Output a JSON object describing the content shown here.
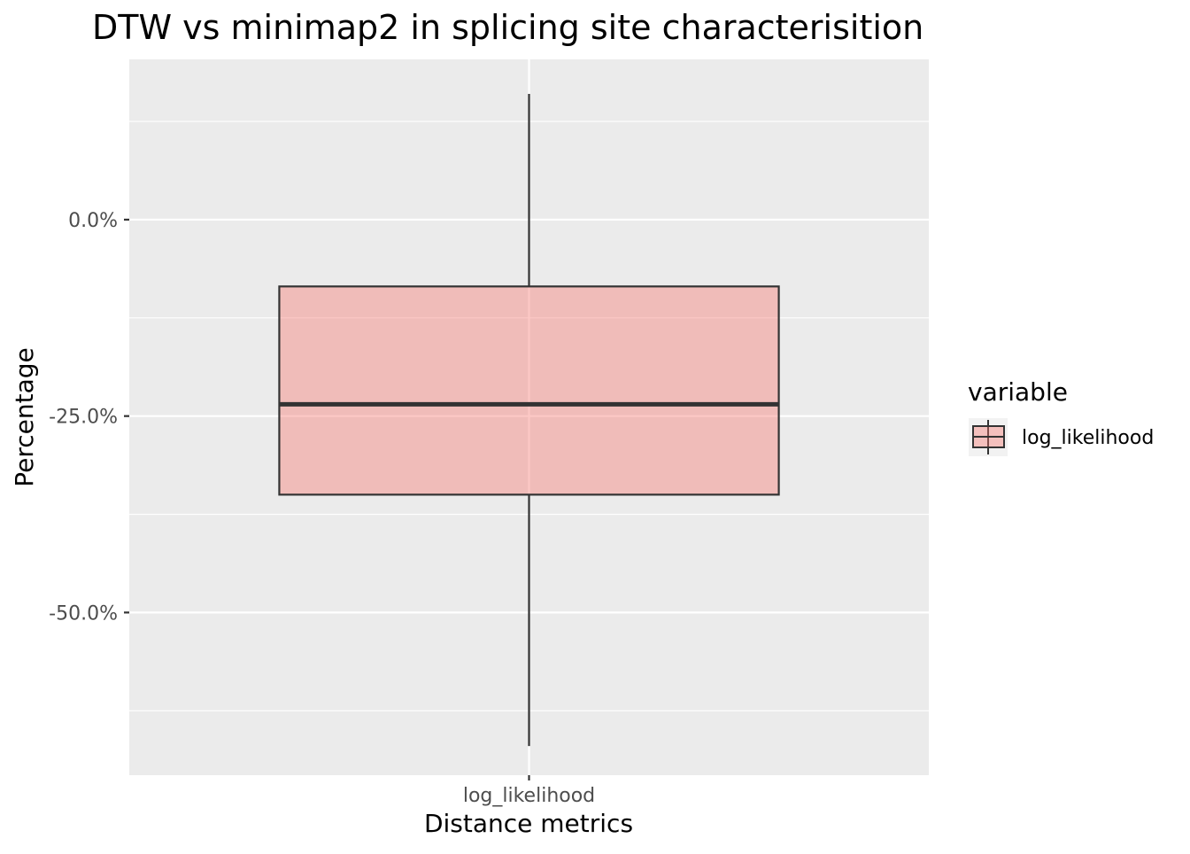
{
  "chart_data": {
    "type": "box",
    "title": "DTW vs minimap2 in splicing site characterisition",
    "xlabel": "Distance metrics",
    "ylabel": "Percentage",
    "categories": [
      "log_likelihood"
    ],
    "y_ticks": [
      0,
      -25,
      -50
    ],
    "y_tick_labels": [
      "0.0%",
      "-25.0%",
      "-50.0%"
    ],
    "y_unit": "%",
    "ylim": [
      -70.7,
      20.4
    ],
    "grid": true,
    "legend": {
      "title": "variable",
      "position": "right",
      "entries": [
        "log_likelihood"
      ]
    },
    "series": [
      {
        "category": "log_likelihood",
        "whisker_low": -67,
        "q1": -35,
        "median": -23.5,
        "q3": -8.5,
        "whisker_high": 16
      }
    ],
    "colors": {
      "panel": "#EBEBEB",
      "grid": "#FFFFFF",
      "box_fill": "#F8766D",
      "box_fill_opacity": 0.4,
      "box_stroke": "#333333"
    }
  }
}
